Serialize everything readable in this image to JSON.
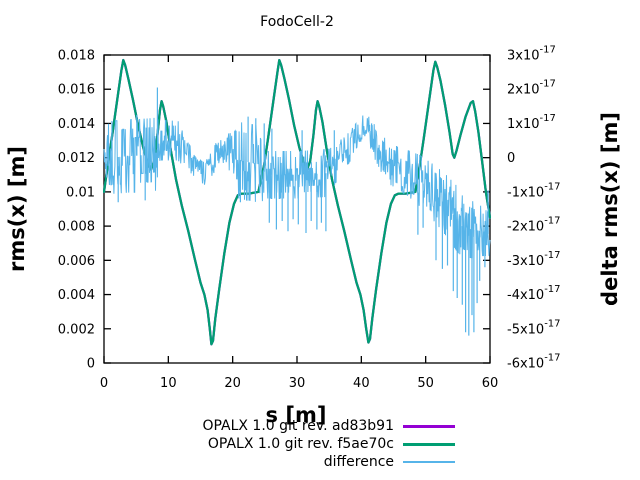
{
  "chart_data": {
    "type": "line",
    "title": "FodoCell-2",
    "xlabel": "s [m]",
    "ylabel_left": "rms(x) [m]",
    "ylabel_right": "delta rms(x) [m]",
    "x_range": [
      0,
      60
    ],
    "x_ticks": [
      0,
      10,
      20,
      30,
      40,
      50,
      60
    ],
    "y_left_range": [
      0,
      0.018
    ],
    "y_left_ticks": [
      {
        "v": 0,
        "label": "0"
      },
      {
        "v": 0.002,
        "label": "0.002"
      },
      {
        "v": 0.004,
        "label": "0.004"
      },
      {
        "v": 0.006,
        "label": "0.006"
      },
      {
        "v": 0.008,
        "label": "0.008"
      },
      {
        "v": 0.01,
        "label": "0.01"
      },
      {
        "v": 0.012,
        "label": "0.012"
      },
      {
        "v": 0.014,
        "label": "0.014"
      },
      {
        "v": 0.016,
        "label": "0.016"
      },
      {
        "v": 0.018,
        "label": "0.018"
      }
    ],
    "y_right_range_e17": [
      -6,
      3
    ],
    "y_right_ticks": [
      {
        "v": 3,
        "mantissa": "3x10",
        "exp": "-17"
      },
      {
        "v": 2,
        "mantissa": "2x10",
        "exp": "-17"
      },
      {
        "v": 1,
        "mantissa": "1x10",
        "exp": "-17"
      },
      {
        "v": 0,
        "mantissa": "0",
        "exp": ""
      },
      {
        "v": -1,
        "mantissa": "-1x10",
        "exp": "-17"
      },
      {
        "v": -2,
        "mantissa": "-2x10",
        "exp": "-17"
      },
      {
        "v": -3,
        "mantissa": "-3x10",
        "exp": "-17"
      },
      {
        "v": -4,
        "mantissa": "-4x10",
        "exp": "-17"
      },
      {
        "v": -5,
        "mantissa": "-5x10",
        "exp": "-17"
      },
      {
        "v": -6,
        "mantissa": "-6x10",
        "exp": "-17"
      }
    ],
    "grid": false,
    "legend_position": "below-right",
    "series": [
      {
        "name": "OPALX 1.0 git rev. ad83b91",
        "color": "#9400d3",
        "axis": "left",
        "points_same_as": 1
      },
      {
        "name": "OPALX 1.0 git rev. f5ae70c",
        "color": "#009e73",
        "axis": "left",
        "points": [
          [
            0,
            0.01
          ],
          [
            0.6,
            0.0116
          ],
          [
            1.2,
            0.0131
          ],
          [
            2.1,
            0.0155
          ],
          [
            2.7,
            0.0171
          ],
          [
            3.0,
            0.0177
          ],
          [
            3.3,
            0.0174
          ],
          [
            3.8,
            0.0166
          ],
          [
            4.5,
            0.0154
          ],
          [
            5.3,
            0.0139
          ],
          [
            6.1,
            0.0126
          ],
          [
            6.8,
            0.0117
          ],
          [
            7.3,
            0.0113
          ],
          [
            7.8,
            0.0118
          ],
          [
            8.3,
            0.0133
          ],
          [
            8.7,
            0.0148
          ],
          [
            8.95,
            0.0153
          ],
          [
            9.2,
            0.015
          ],
          [
            9.7,
            0.0141
          ],
          [
            10.4,
            0.0124
          ],
          [
            11.2,
            0.0107
          ],
          [
            12.1,
            0.0092
          ],
          [
            13.1,
            0.0077
          ],
          [
            14.1,
            0.0061
          ],
          [
            15.0,
            0.0047
          ],
          [
            15.6,
            0.004
          ],
          [
            16.1,
            0.0031
          ],
          [
            16.45,
            0.002
          ],
          [
            16.7,
            0.0011
          ],
          [
            16.95,
            0.0013
          ],
          [
            17.3,
            0.0026
          ],
          [
            17.9,
            0.0043
          ],
          [
            18.7,
            0.0064
          ],
          [
            19.5,
            0.0082
          ],
          [
            20.2,
            0.0093
          ],
          [
            20.8,
            0.0098
          ],
          [
            21.4,
            0.0099
          ],
          [
            22.5,
            0.0099
          ],
          [
            24.0,
            0.01
          ],
          [
            24.9,
            0.0116
          ],
          [
            25.5,
            0.0131
          ],
          [
            26.4,
            0.0155
          ],
          [
            27.0,
            0.0171
          ],
          [
            27.25,
            0.0177
          ],
          [
            27.55,
            0.0174
          ],
          [
            28.05,
            0.0166
          ],
          [
            28.75,
            0.0154
          ],
          [
            29.55,
            0.0139
          ],
          [
            30.35,
            0.0126
          ],
          [
            31.05,
            0.0117
          ],
          [
            31.55,
            0.0113
          ],
          [
            32.05,
            0.0118
          ],
          [
            32.55,
            0.0133
          ],
          [
            32.95,
            0.0148
          ],
          [
            33.2,
            0.0153
          ],
          [
            33.45,
            0.015
          ],
          [
            33.95,
            0.0141
          ],
          [
            34.65,
            0.0124
          ],
          [
            35.45,
            0.0107
          ],
          [
            36.35,
            0.0092
          ],
          [
            37.35,
            0.0077
          ],
          [
            38.35,
            0.0061
          ],
          [
            39.25,
            0.0047
          ],
          [
            39.85,
            0.004
          ],
          [
            40.35,
            0.0031
          ],
          [
            40.75,
            0.002
          ],
          [
            41.1,
            0.0012
          ],
          [
            41.35,
            0.0014
          ],
          [
            41.7,
            0.0026
          ],
          [
            42.3,
            0.0043
          ],
          [
            43.1,
            0.0064
          ],
          [
            43.9,
            0.0082
          ],
          [
            44.6,
            0.0093
          ],
          [
            45.2,
            0.0098
          ],
          [
            45.8,
            0.0099
          ],
          [
            46.9,
            0.0099
          ],
          [
            48.4,
            0.01
          ],
          [
            49.1,
            0.0116
          ],
          [
            49.7,
            0.0131
          ],
          [
            50.6,
            0.0155
          ],
          [
            51.2,
            0.0171
          ],
          [
            51.5,
            0.0176
          ],
          [
            51.8,
            0.0173
          ],
          [
            52.3,
            0.0165
          ],
          [
            53.0,
            0.0151
          ],
          [
            53.7,
            0.0135
          ],
          [
            54.2,
            0.0122
          ],
          [
            54.45,
            0.012
          ],
          [
            54.8,
            0.0124
          ],
          [
            55.4,
            0.0133
          ],
          [
            56.2,
            0.0144
          ],
          [
            57.0,
            0.0152
          ],
          [
            57.35,
            0.0153
          ],
          [
            57.7,
            0.0147
          ],
          [
            58.2,
            0.0135
          ],
          [
            58.8,
            0.0117
          ],
          [
            59.4,
            0.0099
          ],
          [
            60,
            0.0085
          ]
        ]
      },
      {
        "name": "difference",
        "color": "#56b4e9",
        "axis": "right",
        "units_e17": true,
        "seed": 20,
        "noise_envelope": [
          [
            0,
            0,
            0.45
          ],
          [
            0.8,
            0,
            0.95
          ],
          [
            8.0,
            0.1,
            0.95
          ],
          [
            8.7,
            0.5,
            0.52
          ],
          [
            11.5,
            0.5,
            0.52
          ],
          [
            12.6,
            0.15,
            0.4
          ],
          [
            13.6,
            -0.1,
            0.33
          ],
          [
            14.6,
            -0.32,
            0.3
          ],
          [
            15.6,
            -0.48,
            0.28
          ],
          [
            16.6,
            -0.22,
            0.32
          ],
          [
            17.6,
            0.1,
            0.36
          ],
          [
            18.6,
            0.28,
            0.38
          ],
          [
            19.6,
            0.15,
            0.5
          ],
          [
            20.4,
            -0.05,
            1.0
          ],
          [
            24.2,
            -0.2,
            1.0
          ],
          [
            25.2,
            -0.5,
            0.62
          ],
          [
            30.0,
            -0.5,
            0.62
          ],
          [
            35.0,
            -0.45,
            0.62
          ],
          [
            36.2,
            -0.1,
            0.5
          ],
          [
            37.2,
            0.12,
            0.4
          ],
          [
            38.2,
            0.32,
            0.4
          ],
          [
            39.2,
            0.58,
            0.38
          ],
          [
            40.1,
            0.88,
            0.3
          ],
          [
            40.7,
            0.97,
            0.28
          ],
          [
            41.4,
            0.72,
            0.38
          ],
          [
            42.2,
            0.42,
            0.45
          ],
          [
            43.2,
            0.1,
            0.5
          ],
          [
            44.2,
            -0.15,
            0.55
          ],
          [
            45.7,
            -0.3,
            0.55
          ],
          [
            47.2,
            -0.45,
            0.6
          ],
          [
            48.7,
            -0.62,
            0.65
          ],
          [
            50.2,
            -0.85,
            0.7
          ],
          [
            51.7,
            -1.1,
            0.75
          ],
          [
            53.2,
            -1.4,
            0.8
          ],
          [
            54.7,
            -1.75,
            0.85
          ],
          [
            55.7,
            -2.0,
            0.8
          ],
          [
            57.2,
            -2.1,
            0.75
          ],
          [
            58.7,
            -2.15,
            0.65
          ],
          [
            60,
            -2.25,
            0.55
          ]
        ],
        "spikes": [
          [
            2.2,
            -1.3
          ],
          [
            5.1,
            1.25
          ],
          [
            6.4,
            -1.25
          ],
          [
            8.3,
            2.05
          ],
          [
            21.2,
            -1.3
          ],
          [
            22.4,
            1.2
          ],
          [
            23.6,
            1.15
          ],
          [
            24.9,
            1.0
          ],
          [
            25.7,
            -1.9
          ],
          [
            26.1,
            0.85
          ],
          [
            26.8,
            -2.1
          ],
          [
            27.7,
            -1.85
          ],
          [
            28.6,
            -2.15
          ],
          [
            29.4,
            -1.8
          ],
          [
            30.2,
            -1.95
          ],
          [
            30.8,
            0.8
          ],
          [
            31.4,
            -2.2
          ],
          [
            32.2,
            -1.85
          ],
          [
            33.1,
            -2.1
          ],
          [
            33.8,
            -1.9
          ],
          [
            34.5,
            -2.15
          ],
          [
            35.8,
            0.8
          ],
          [
            41.6,
            1.0
          ],
          [
            48.8,
            -2.25
          ],
          [
            49.6,
            -2.05
          ],
          [
            51.6,
            -3.0
          ],
          [
            52.6,
            -3.25
          ],
          [
            53.4,
            -3.15
          ],
          [
            54.3,
            -3.9
          ],
          [
            54.9,
            -4.1
          ],
          [
            55.7,
            -4.3
          ],
          [
            56.2,
            -5.1
          ],
          [
            56.7,
            -5.2
          ],
          [
            57.2,
            -4.6
          ],
          [
            57.5,
            -5.1
          ],
          [
            58.0,
            -4.25
          ],
          [
            58.4,
            -3.6
          ],
          [
            59.2,
            -3.2
          ],
          [
            59.7,
            -0.95
          ]
        ]
      }
    ]
  }
}
